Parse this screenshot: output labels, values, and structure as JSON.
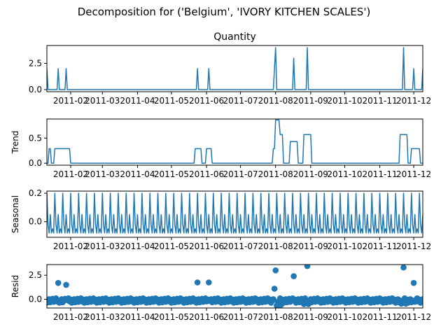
{
  "figure": {
    "suptitle": "Decomposition for ('Belgium', 'IVORY KITCHEN SCALES')"
  },
  "colors": {
    "series": "#1f77b4",
    "axis": "#000000"
  },
  "x_tick_labels": [
    "2011-02",
    "2011-03",
    "2011-04",
    "2011-05",
    "2011-06",
    "2011-07",
    "2011-08",
    "2011-09",
    "2011-10",
    "2011-11",
    "2011-12"
  ],
  "chart_data": [
    {
      "type": "line",
      "title": "Quantity",
      "ylabel": "",
      "x_range": [
        "2011-01-11",
        "2011-12-09"
      ],
      "ylim": [
        -0.2,
        4.2
      ],
      "yticks": [
        "0.0",
        "2.5"
      ],
      "baseline": 0,
      "spikes": [
        {
          "x": "2011-01-11",
          "y": 2
        },
        {
          "x": "2011-01-21",
          "y": 2
        },
        {
          "x": "2011-01-28",
          "y": 2
        },
        {
          "x": "2011-05-24",
          "y": 2
        },
        {
          "x": "2011-06-03",
          "y": 2
        },
        {
          "x": "2011-07-31",
          "y": 2
        },
        {
          "x": "2011-08-01",
          "y": 4
        },
        {
          "x": "2011-08-17",
          "y": 3
        },
        {
          "x": "2011-08-29",
          "y": 4
        },
        {
          "x": "2011-11-22",
          "y": 4
        },
        {
          "x": "2011-12-01",
          "y": 2
        },
        {
          "x": "2011-12-09",
          "y": 2
        }
      ]
    },
    {
      "type": "line",
      "title": "",
      "ylabel": "Trend",
      "x_range": [
        "2011-01-11",
        "2011-12-09"
      ],
      "ylim": [
        -0.04,
        0.88
      ],
      "yticks": [
        "0.0",
        "0.5"
      ],
      "baseline": 0,
      "plateaus": [
        {
          "start": "2011-01-13",
          "end": "2011-01-14",
          "y": 0.29
        },
        {
          "start": "2011-01-18",
          "end": "2011-01-24",
          "y": 0.29
        },
        {
          "start": "2011-01-25",
          "end": "2011-01-31",
          "y": 0.29
        },
        {
          "start": "2011-05-22",
          "end": "2011-05-27",
          "y": 0.29
        },
        {
          "start": "2011-06-01",
          "end": "2011-06-05",
          "y": 0.29
        },
        {
          "start": "2011-07-30",
          "end": "2011-07-31",
          "y": 0.29
        },
        {
          "start": "2011-08-01",
          "end": "2011-08-05",
          "y": 0.86
        },
        {
          "start": "2011-08-05",
          "end": "2011-08-07",
          "y": 0.57
        },
        {
          "start": "2011-08-14",
          "end": "2011-08-20",
          "y": 0.43
        },
        {
          "start": "2011-08-26",
          "end": "2011-09-01",
          "y": 0.57
        },
        {
          "start": "2011-11-19",
          "end": "2011-11-25",
          "y": 0.57
        },
        {
          "start": "2011-11-29",
          "end": "2011-12-06",
          "y": 0.29
        }
      ]
    },
    {
      "type": "line",
      "title": "",
      "ylabel": "Seasonal",
      "x_range": [
        "2011-01-11",
        "2011-12-09"
      ],
      "ylim": [
        -0.11,
        0.215
      ],
      "yticks": [
        "0.0",
        "0.2"
      ],
      "period_days": 7,
      "weekly_pattern": [
        0.2,
        -0.02,
        -0.08,
        0.05,
        -0.08,
        -0.05,
        -0.08
      ]
    },
    {
      "type": "scatter",
      "title": "",
      "ylabel": "Resid",
      "x_range": [
        "2011-01-11",
        "2011-12-09"
      ],
      "ylim": [
        -0.9,
        3.6
      ],
      "yticks": [
        "0.0",
        "2.5"
      ],
      "baseline_band": [
        -0.35,
        0.1
      ],
      "outliers": [
        {
          "x": "2011-01-21",
          "y": 1.7
        },
        {
          "x": "2011-01-28",
          "y": 1.5
        },
        {
          "x": "2011-05-24",
          "y": 1.75
        },
        {
          "x": "2011-06-03",
          "y": 1.75
        },
        {
          "x": "2011-07-31",
          "y": 1.1
        },
        {
          "x": "2011-08-01",
          "y": 3.0
        },
        {
          "x": "2011-08-17",
          "y": 2.4
        },
        {
          "x": "2011-08-29",
          "y": 3.45
        },
        {
          "x": "2011-11-22",
          "y": 3.3
        },
        {
          "x": "2011-12-01",
          "y": 1.7
        },
        {
          "x": "2011-08-02",
          "y": -0.65
        },
        {
          "x": "2011-08-04",
          "y": -0.65
        },
        {
          "x": "2011-08-06",
          "y": -0.55
        },
        {
          "x": "2011-08-26",
          "y": -0.5
        },
        {
          "x": "2011-08-30",
          "y": -0.5
        },
        {
          "x": "2011-11-20",
          "y": -0.45
        },
        {
          "x": "2011-11-24",
          "y": -0.45
        }
      ]
    }
  ]
}
